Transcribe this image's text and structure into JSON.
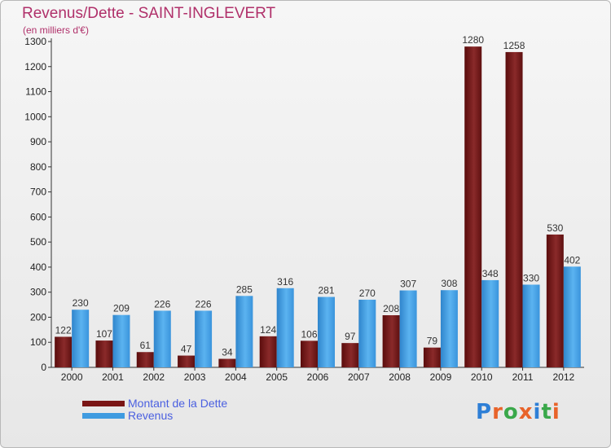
{
  "chart_data": {
    "type": "bar",
    "title": "Revenus/Dette - SAINT-INGLEVERT",
    "subtitle": "(en milliers d'€)",
    "categories": [
      "2000",
      "2001",
      "2002",
      "2003",
      "2004",
      "2005",
      "2006",
      "2007",
      "2008",
      "2009",
      "2010",
      "2011",
      "2012"
    ],
    "series": [
      {
        "name": "Montant de la Dette",
        "color": "#7a1515",
        "values": [
          122,
          107,
          61,
          47,
          34,
          124,
          106,
          97,
          208,
          79,
          1280,
          1258,
          530
        ]
      },
      {
        "name": "Revenus",
        "color": "#3f9be0",
        "values": [
          230,
          209,
          226,
          226,
          285,
          316,
          281,
          270,
          307,
          308,
          348,
          330,
          402
        ]
      }
    ],
    "ylim": [
      0,
      1300
    ],
    "yticks": [
      0,
      100,
      200,
      300,
      400,
      500,
      600,
      700,
      800,
      900,
      1000,
      1100,
      1200,
      1300
    ],
    "grid": false,
    "legend_position": "bottom-left"
  },
  "logo": {
    "text": "Proxiti"
  }
}
